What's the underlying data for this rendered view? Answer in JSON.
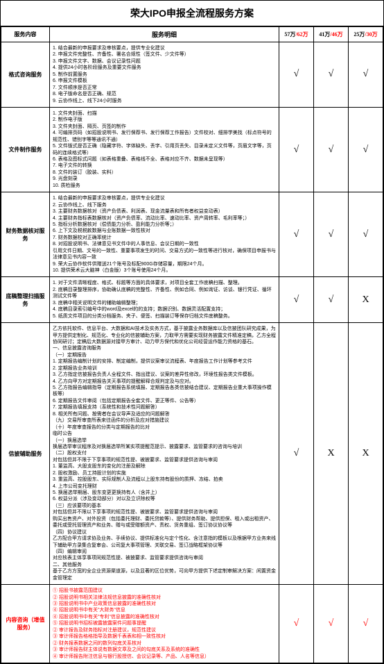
{
  "title": "荣大IPO申报全流程服务方案",
  "headers": {
    "cat": "服务内容",
    "detail": "服务明细",
    "p1": "57万",
    "p1r": "/62万",
    "p2": "41万",
    "p2r": "/46万",
    "p3": "25万",
    "p3r": "/30万"
  },
  "rows": [
    {
      "cat": "格式咨询服务",
      "detail": "1. 结合最新的申报要求及审核要点，提供专业化建议\n2. 申报文件完整性、齐备性、署名合规性（签文件、少文件等）\n3. 申报文件文字、数据、会议记录性问题\n4. 提供24小时各阶段服务及重要文件服务\n5. 制作前置服务\n6. 申报文件模板\n7. 文件顺序是否正常\n8. 电子版命名是否正确、规范\n9. 云协作线上、线下24小时服务",
      "c1": "√",
      "c2": "√",
      "c3": "√"
    },
    {
      "cat": "文件制作服务",
      "detail": "1. 文件夹封面、扫描\n2. 制作电子版\n3. 文件夹封面、隔页、页签的制作\n4. 可编排页码（如招股说明书、发行保荐书、发行保荐工作报告）文件校对、细排学美找（标点符号的规范性、错别字等等通讯不通）\n5. 文件版式是否正确（隐藏字符、字体缺失、丢字、引用页丢失、目录未定义文件等，页眉文字等，页码的连续格式等）\n6. 表格及图标式问题（如表格重叠、表格线不全、表格对应不齐、数据未呈现等）\n7. 电子文件的转换\n8. 文件的装订（胶装、实料）\n9. 光盘刻录\n10. 质检服务",
      "c1": "√",
      "c2": "√",
      "c3": "√"
    },
    {
      "cat": "财务数据核对服务",
      "detail": "1. 结合最新的申报要求及审核要点，提供专业化建议\n2. 云协作线上、线下服务\n3. 主要财务数据核对（资产负债表、利润表、现金流量表和所有者权益变动表）\n4. 主要财务指标表数据核对（资产负债率、流动比率、速动比率、资产周转率、毛利率等；）\n5. 指标分析数据核对（偿债能力分析、盈利能力分析等；）\n6. 上下文及税税款数据与业账数据一致性核对\n7. 财务数据校对正确率统计\n8. 对招股说明书、法律意见书文件中的人事信息、会议日期的一致性\n引用文件日期、文号的一致性、重要事项发生的时间、交易方式的一致性等进行核对，确保项目申报书与法律意见书内容一致\n9. 荣大云协作软件供赠送21个账号及标配900G存储容量，期限24个月。\n10. 提供荣术云大脑神（白金版）3个账号使用24个月。",
      "c1": "√",
      "c2": "√",
      "c3": "√"
    },
    {
      "cat": "底稿整理扫描服务",
      "detail": "1. 对于文件清晰程度、格式、标题等方面的具体要求，对项目全套工作底稿扫描、整理。\n2. 底稿目录整理排序，协助确认底稿的完整性、齐备性、例如合同、例如询证、访谈、银行凭证、循环测试文件等\n3. 底稿中相关说明文件的辅助编辑整理；\n4. 底稿目录索引编号中的word及excel的的支持；数据识别、数据灵活配置支持；\n5. 纸质文件项目的分类分档服务、夹子、便签、扫描装订等保存归档文件底稿整务。",
      "c1": "√",
      "c2": "√",
      "c3": "X"
    },
    {
      "cat": "信披辅助服务",
      "detail": "乙方依托软件、信息平台、大数据和AI技术及实务方式，基于披露业务数据库以及信披团队研究成果，为甲方提供定制化、规范化、专业化的信披辅助方案，力取甲方需要实现财务披露文件精准定稿，乙方全程协同研讨；定稿后大数据源对接甲方审计、动力甲方保代和优化公司经营运作能力资格的基石。\n一、信息披露咨询服务\n（一）定期报告\n1. 定期报告编制计划的安排、制定编制，提供议案审议流程表、年度报告工作计划等参考文件\n2. 定期报告业务培训\n3. 乙方指定信披报告负责人全程文件、指出建议、议案的差异性修改，环境性报告类文件模板。\n4. 乙方向甲方对定期报告关天事项的提醒解释合规判定及与应对。\n5. 乙方指报告编辑指导（定期报告系统填报、定期报告各类信披结合建议、定期报告业重大事项操作模板等）\n6. 定期报告文件审阅（包括定期报告全套文件、更正等件、公告等）\n7. 定期报告填报支持（系统性和技术性问题解答）\n8. 相关所有问题、按需者在会议导声及适应的问题解答\n（九）交易所审查所表来往函件的分析及应对措施建议\n（十）年度审查报告的分类与定期报告的比对\n临时公告\n（一）换届选举\n换届选举审议程序及对换届选举所某实项提醒范提示、披露要求、监管要求的咨询与培训\n（二）股权支付\n对包括但并不限于下享事项的规范性提、被披要求、监管要求提供咨询与审阅\n1. 董监高、大股支股东的变化的注册及解除\n2. 股权激励、员工持股计划的实施\n3. 重监高、控股股东、实际规制人及流程以上股东持有股份的质押、冻结、拍卖\n4. 上市公司变托理财\n5. 换届选举期届、股东变更更换持有人（含并上）\n6. 权益分派（涉及变动部分）对以及立识除权等\n（三）应该要项的基本\n对包括但并不限以下享事项的规范性提、被披要求、监管要求提供咨询与审阅\n购买出售资产、对外投资（包括委托理财、委托贷款等）、提供财务帮助、提供担保、租入或出租资产、委托或受托管理资产和业务、赠与或受赠额资产、责权、货务重组、签订协议协议等\n（四）协议建议\n乙方配合甲方请求协及业务、手续协议、提供标准化与定个性化、含注意指的模板以及根据甲方业务来线下辅助甲方录集合复审会、公司复大事项管理、关联交易、签订战略框架协议等\n（四）编辑审阅\n对应核表主体享事项同规范性提、被披要求、监管要求提供咨询与审阅\n二、其他服务\n基于乙方方宽的全企业资源渠道源，以及显著的区位优势，可向甲方提供下述定制审解决方案：闲置资金金管理定",
      "c1": "√",
      "c2": "X",
      "c3": "X"
    },
    {
      "cat": "内容咨询（增值服务）",
      "detail_red": true,
      "detail": "① 招股书披露范围建议\n② 招股说明书相关法律法规信息披露的准确性核对\n③ 招股说明书中产业政策信息披露的准确性核对\n④ 招股说明书中有关\"大财务\"信息\n④ 招股说明书中有关\"专利\"信息披露的准确性核对\n⑤ 招股说明书招标被露披露案件问题事提醒\n② 审计报告及财务指标对注册建议，规范性建议\n③ 审计师报告格格指导及数据千表表和相一致性核对\n② 财务报表数据之间的数列勾底关系核对\n③ 审计师报告财主体说有数据文章及之间的勾底关系及系统的准确性\n④ 审计师报告附注信息与银行股授信、会议记录等、产品、人名等信息）",
      "c1": "√",
      "c2": "√",
      "c3": "√",
      "red_check": true
    }
  ]
}
